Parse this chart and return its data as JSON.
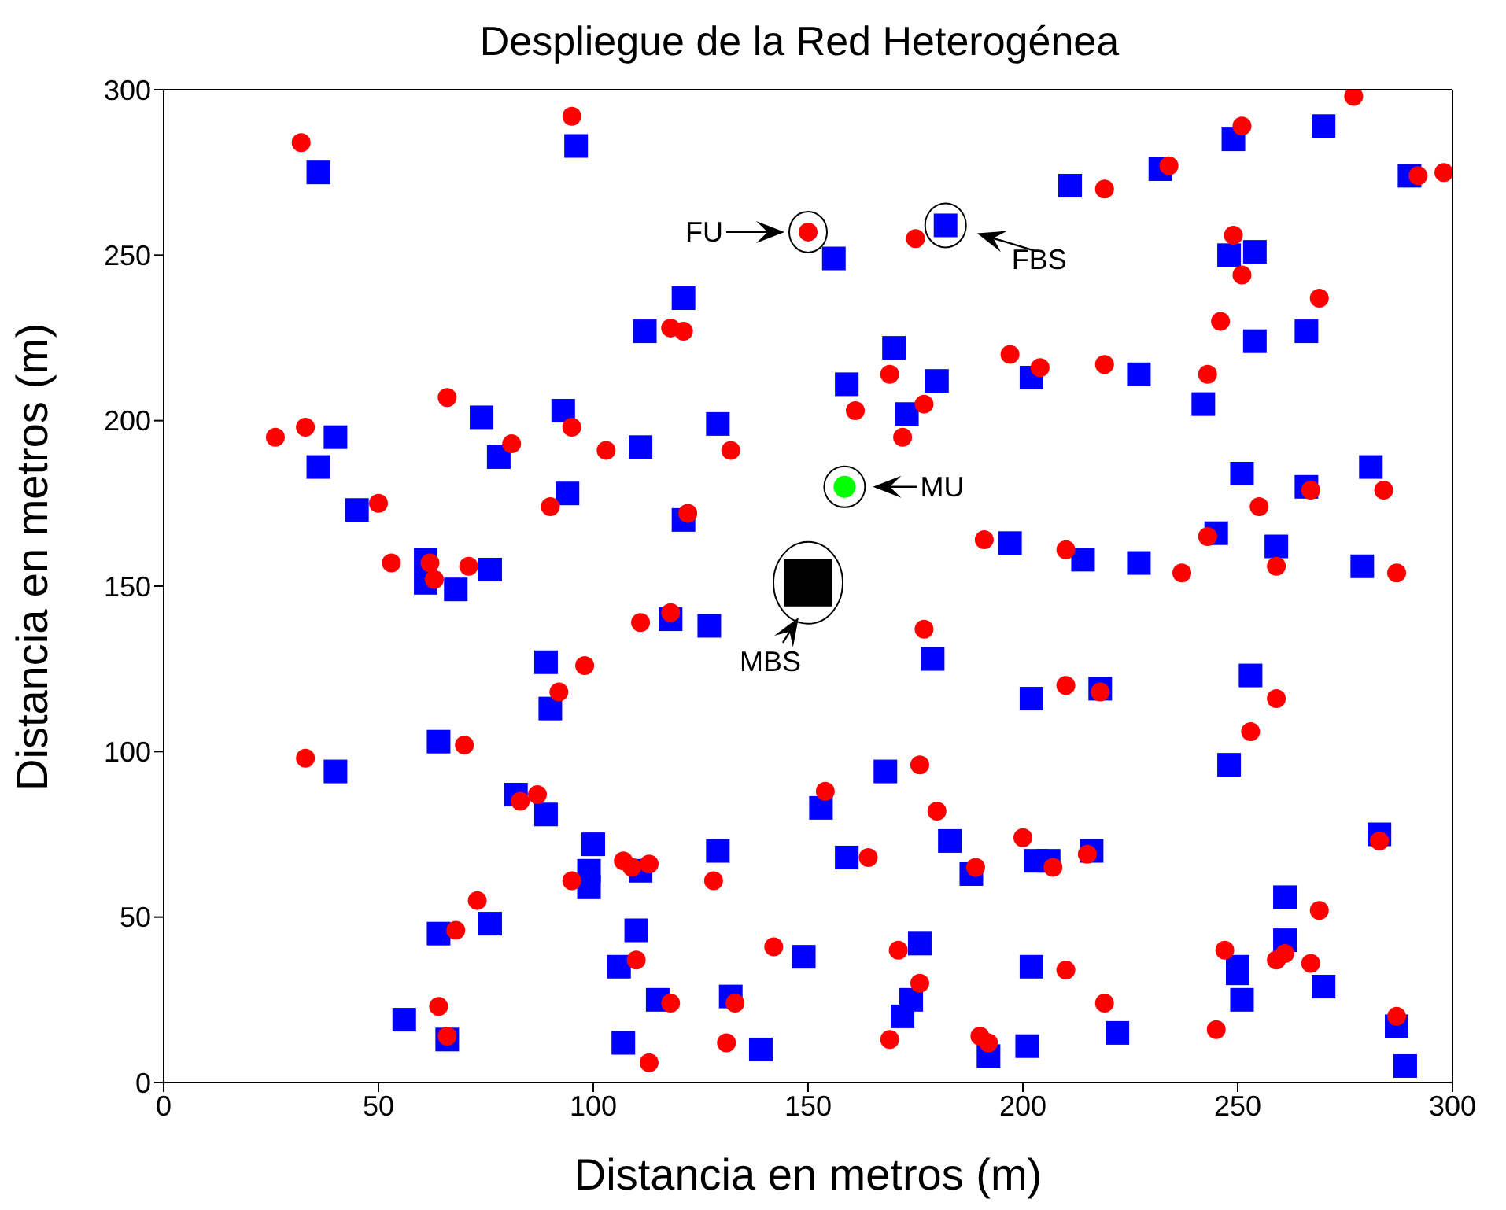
{
  "chart_data": {
    "type": "scatter",
    "title": "Despliegue de la Red Heterogénea",
    "xlabel": "Distancia en metros (m)",
    "ylabel": "Distancia en metros (m)",
    "xlim": [
      0,
      300
    ],
    "ylim": [
      0,
      300
    ],
    "xticks": [
      0,
      50,
      100,
      150,
      200,
      250,
      300
    ],
    "yticks": [
      0,
      50,
      100,
      150,
      200,
      250,
      300
    ],
    "grid": false,
    "legend": false,
    "series": [
      {
        "color": "#0000ff",
        "marker": "square",
        "x": [
          36,
          96,
          121,
          112,
          170,
          159,
          180,
          173,
          129,
          111,
          121,
          197,
          156,
          182,
          74,
          93,
          40,
          36,
          78,
          45,
          94,
          61,
          61,
          68,
          76,
          270,
          249,
          232,
          211,
          290,
          248,
          254,
          254,
          266,
          202,
          227,
          242,
          251,
          281,
          266,
          245,
          259,
          279,
          214,
          227,
          89,
          90,
          64,
          40,
          82,
          89,
          100,
          99,
          99,
          76,
          64,
          56,
          66,
          118,
          127,
          179,
          168,
          153,
          183,
          188,
          159,
          129,
          111,
          110,
          106,
          149,
          176,
          174,
          172,
          115,
          132,
          107,
          139,
          192,
          201,
          202,
          218,
          253,
          248,
          203,
          206,
          216,
          283,
          261,
          261,
          270,
          250,
          250,
          251,
          202,
          222,
          287,
          289
        ],
        "values": [
          275,
          283,
          237,
          227,
          222,
          211,
          212,
          202,
          199,
          192,
          170,
          163,
          249,
          259,
          201,
          203,
          195,
          186,
          189,
          173,
          178,
          158,
          151,
          149,
          155,
          289,
          285,
          276,
          271,
          274,
          250,
          251,
          224,
          227,
          213,
          214,
          205,
          184,
          186,
          180,
          166,
          162,
          156,
          158,
          157,
          127,
          113,
          103,
          94,
          87,
          81,
          72,
          64,
          59,
          48,
          45,
          19,
          13,
          140,
          138,
          128,
          94,
          83,
          73,
          63,
          68,
          70,
          64,
          46,
          35,
          38,
          42,
          25,
          20,
          25,
          26,
          12,
          10,
          8,
          11,
          116,
          119,
          123,
          96,
          67,
          67,
          70,
          75,
          56,
          43,
          29,
          35,
          33,
          25,
          35,
          15,
          17,
          5
        ]
      },
      {
        "color": "#ff0000",
        "marker": "circle",
        "x": [
          150,
          175,
          118,
          121,
          169,
          161,
          177,
          172,
          103,
          132,
          122,
          191,
          197,
          204,
          32,
          95,
          66,
          95,
          26,
          33,
          81,
          50,
          90,
          53,
          62,
          63,
          71,
          277,
          251,
          234,
          219,
          292,
          298,
          249,
          251,
          269,
          246,
          219,
          243,
          284,
          267,
          255,
          243,
          259,
          287,
          210,
          237,
          98,
          92,
          70,
          33,
          83,
          87,
          95,
          73,
          68,
          64,
          66,
          111,
          118,
          177,
          176,
          154,
          180,
          200,
          189,
          164,
          128,
          107,
          109,
          113,
          110,
          142,
          171,
          176,
          118,
          133,
          113,
          131,
          169,
          190,
          192,
          210,
          218,
          259,
          253,
          207,
          215,
          283,
          269,
          261,
          259,
          267,
          247,
          210,
          219,
          245,
          287
        ],
        "values": [
          257,
          255,
          228,
          227,
          214,
          203,
          205,
          195,
          191,
          191,
          172,
          164,
          220,
          216,
          284,
          292,
          207,
          198,
          195,
          198,
          193,
          175,
          174,
          157,
          157,
          152,
          156,
          298,
          289,
          277,
          270,
          274,
          275,
          256,
          244,
          237,
          230,
          217,
          214,
          179,
          179,
          174,
          165,
          156,
          154,
          161,
          154,
          126,
          118,
          102,
          98,
          85,
          87,
          61,
          55,
          46,
          23,
          14,
          139,
          142,
          137,
          96,
          88,
          82,
          74,
          65,
          68,
          61,
          67,
          65,
          66,
          37,
          41,
          40,
          30,
          24,
          24,
          6,
          12,
          13,
          14,
          12,
          120,
          118,
          116,
          106,
          65,
          69,
          73,
          52,
          39,
          37,
          36,
          40,
          34,
          24,
          16,
          20
        ]
      },
      {
        "color": "#00ff00",
        "marker": "circle",
        "x": [
          158.5
        ],
        "values": [
          180
        ]
      },
      {
        "color": "#000000",
        "marker": "square",
        "x": [
          150
        ],
        "values": [
          151
        ]
      }
    ],
    "annotations": [
      {
        "text": "FU",
        "x": 150,
        "y": 257
      },
      {
        "text": "FBS",
        "x": 182,
        "y": 259
      },
      {
        "text": "MU",
        "x": 158.5,
        "y": 180
      },
      {
        "text": "MBS",
        "x": 150,
        "y": 151
      }
    ]
  }
}
